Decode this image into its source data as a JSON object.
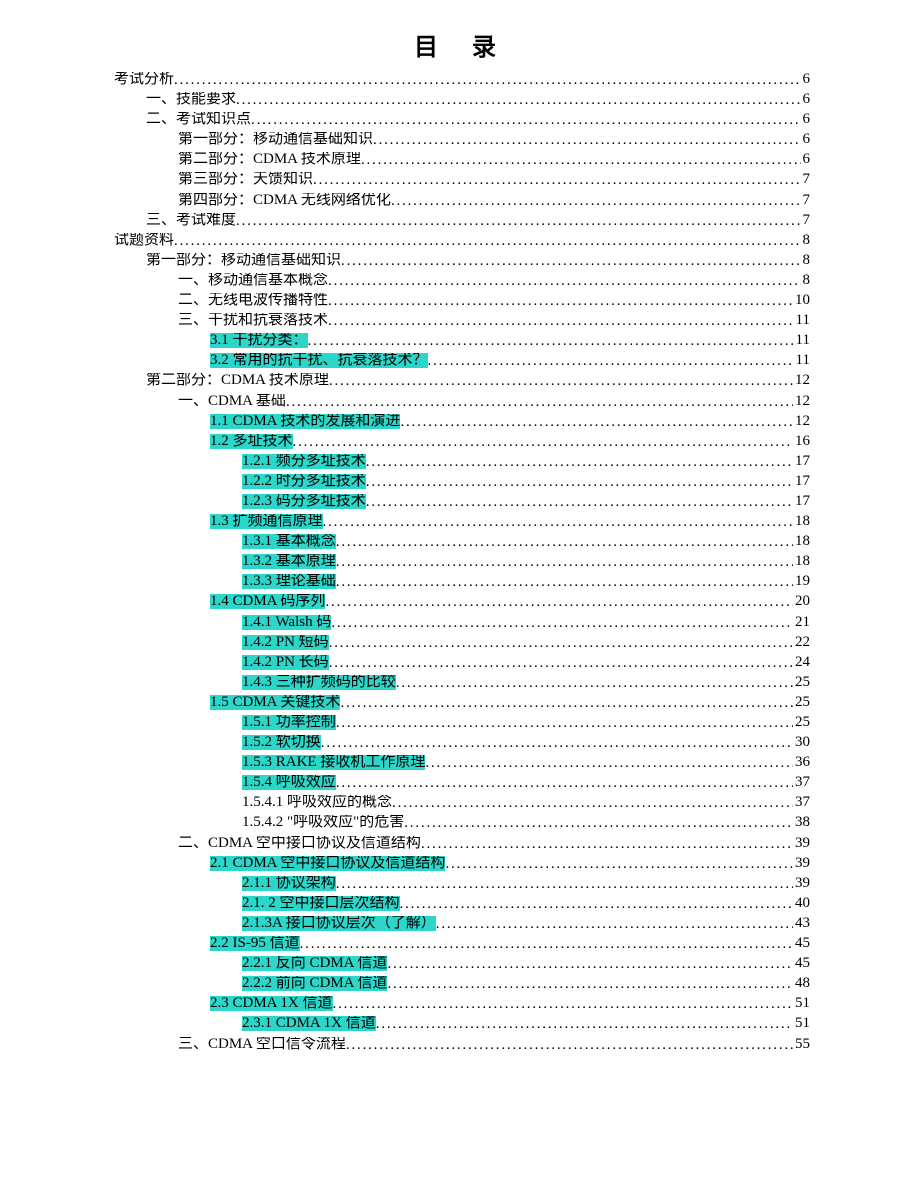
{
  "title": "目 录",
  "highlight_color": "#2cd7ca",
  "background_color": "#ffffff",
  "text_color": "#000000",
  "fontsize_body": 15,
  "fontsize_title": 24,
  "entries": [
    {
      "indent": 0,
      "label": "考试分析",
      "page": "6",
      "hl": false
    },
    {
      "indent": 1,
      "label": "一、技能要求",
      "page": "6",
      "hl": false
    },
    {
      "indent": 1,
      "label": "二、考试知识点",
      "page": "6",
      "hl": false
    },
    {
      "indent": 2,
      "label": "第一部分：移动通信基础知识",
      "page": "6",
      "hl": false
    },
    {
      "indent": 2,
      "label": "第二部分：CDMA 技术原理",
      "page": "6",
      "hl": false
    },
    {
      "indent": 2,
      "label": "第三部分：天馈知识",
      "page": "7",
      "hl": false
    },
    {
      "indent": 2,
      "label": "第四部分：CDMA 无线网络优化",
      "page": "7",
      "hl": false
    },
    {
      "indent": 1,
      "label": "三、考试难度",
      "page": "7",
      "hl": false
    },
    {
      "indent": 0,
      "label": "试题资料",
      "page": "8",
      "hl": false
    },
    {
      "indent": 1,
      "label": "第一部分：移动通信基础知识",
      "page": "8",
      "hl": false
    },
    {
      "indent": 2,
      "label": "一、移动通信基本概念",
      "page": "8",
      "hl": false
    },
    {
      "indent": 2,
      "label": "二、无线电波传播特性",
      "page": "10",
      "hl": false
    },
    {
      "indent": 2,
      "label": "三、干扰和抗衰落技术",
      "page": "11",
      "hl": false
    },
    {
      "indent": 3,
      "label": "3.1 干扰分类：",
      "page": "11",
      "hl": true
    },
    {
      "indent": 3,
      "label": "3.2 常用的抗干扰、抗衰落技术？",
      "page": "11",
      "hl": true
    },
    {
      "indent": 1,
      "label": "第二部分：CDMA 技术原理",
      "page": "12",
      "hl": false
    },
    {
      "indent": 2,
      "label": "一、CDMA 基础",
      "page": "12",
      "hl": false
    },
    {
      "indent": 3,
      "label": "1.1 CDMA 技术的发展和演进",
      "page": "12",
      "hl": true
    },
    {
      "indent": 3,
      "label": "1.2 多址技术",
      "page": "16",
      "hl": true
    },
    {
      "indent": 4,
      "label": "1.2.1 频分多址技术",
      "page": "17",
      "hl": true
    },
    {
      "indent": 4,
      "label": "1.2.2 时分多址技术",
      "page": "17",
      "hl": true
    },
    {
      "indent": 4,
      "label": "1.2.3 码分多址技术",
      "page": "17",
      "hl": true
    },
    {
      "indent": 3,
      "label": "1.3 扩频通信原理",
      "page": "18",
      "hl": true
    },
    {
      "indent": 4,
      "label": "1.3.1 基本概念",
      "page": "18",
      "hl": true
    },
    {
      "indent": 4,
      "label": "1.3.2 基本原理",
      "page": "18",
      "hl": true
    },
    {
      "indent": 4,
      "label": "1.3.3 理论基础",
      "page": "19",
      "hl": true
    },
    {
      "indent": 3,
      "label": "1.4 CDMA 码序列",
      "page": "20",
      "hl": true
    },
    {
      "indent": 4,
      "label": "1.4.1 Walsh 码",
      "page": "21",
      "hl": true
    },
    {
      "indent": 4,
      "label": "1.4.2  PN 短码",
      "page": "22",
      "hl": true
    },
    {
      "indent": 4,
      "label": "1.4.2  PN 长码",
      "page": "24",
      "hl": true
    },
    {
      "indent": 4,
      "label": "1.4.3  三种扩频码的比较",
      "page": "25",
      "hl": true
    },
    {
      "indent": 3,
      "label": "1.5 CDMA 关键技术",
      "page": "25",
      "hl": true
    },
    {
      "indent": 4,
      "label": "1.5.1 功率控制",
      "page": "25",
      "hl": true
    },
    {
      "indent": 4,
      "label": "1.5.2 软切换",
      "page": "30",
      "hl": true
    },
    {
      "indent": 4,
      "label": "1.5.3 RAKE 接收机工作原理",
      "page": "36",
      "hl": true
    },
    {
      "indent": 4,
      "label": "1.5.4 呼吸效应",
      "page": "37",
      "hl": true
    },
    {
      "indent": 4,
      "label": "1.5.4.1 呼吸效应的概念",
      "page": "37",
      "hl": false
    },
    {
      "indent": 4,
      "label": "1.5.4.2 \"呼吸效应\"的危害",
      "page": "38",
      "hl": false
    },
    {
      "indent": 2,
      "label": "二、CDMA 空中接口协议及信道结构",
      "page": "39",
      "hl": false
    },
    {
      "indent": 3,
      "label": "2.1 CDMA 空中接口协议及信道结构",
      "page": "39",
      "hl": true
    },
    {
      "indent": 4,
      "label": "2.1.1 协议架构",
      "page": "39",
      "hl": true
    },
    {
      "indent": 4,
      "label": "2.1. 2 空中接口层次结构",
      "page": "40",
      "hl": true
    },
    {
      "indent": 4,
      "label": "2.1.3A 接口协议层次（了解）",
      "page": "43",
      "hl": true
    },
    {
      "indent": 3,
      "label": "2.2 IS-95 信道",
      "page": "45",
      "hl": true
    },
    {
      "indent": 4,
      "label": "2.2.1 反向 CDMA 信道",
      "page": "45",
      "hl": true
    },
    {
      "indent": 4,
      "label": "2.2.2 前向 CDMA 信道",
      "page": "48",
      "hl": true
    },
    {
      "indent": 3,
      "label": "2.3 CDMA 1X 信道",
      "page": "51",
      "hl": true
    },
    {
      "indent": 4,
      "label": "2.3.1 CDMA 1X 信道",
      "page": "51",
      "hl": true
    },
    {
      "indent": 2,
      "label": "三、CDMA 空口信令流程",
      "page": "55",
      "hl": false
    }
  ]
}
